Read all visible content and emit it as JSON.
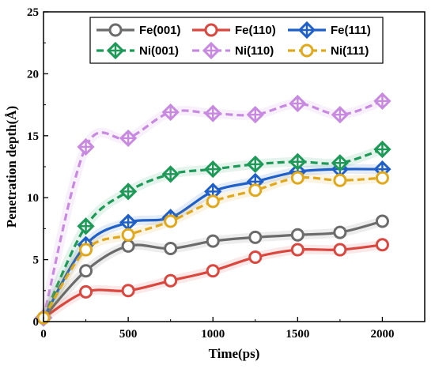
{
  "chart_data": {
    "type": "line",
    "title": "",
    "xlabel": "Time(ps)",
    "ylabel": "Penetration depth(Å)",
    "xlim": [
      0,
      2250
    ],
    "ylim": [
      0,
      25
    ],
    "xticks": [
      0,
      500,
      1000,
      1500,
      2000
    ],
    "yticks": [
      0,
      5,
      10,
      15,
      20,
      25
    ],
    "grid": false,
    "legend_position": "top",
    "series": [
      {
        "name": "Fe(001)",
        "color": "#6b6b6b",
        "marker": "circle",
        "dash": false,
        "x": [
          0,
          250,
          500,
          750,
          1000,
          1250,
          1500,
          1750,
          2000
        ],
        "y": [
          0.3,
          4.1,
          6.1,
          5.9,
          6.5,
          6.8,
          7.0,
          7.2,
          8.1
        ]
      },
      {
        "name": "Fe(110)",
        "color": "#d9473f",
        "marker": "circle",
        "dash": false,
        "x": [
          0,
          250,
          500,
          750,
          1000,
          1250,
          1500,
          1750,
          2000
        ],
        "y": [
          0.3,
          2.4,
          2.5,
          3.3,
          4.1,
          5.2,
          5.8,
          5.8,
          6.2
        ]
      },
      {
        "name": "Fe(111)",
        "color": "#1f5fc8",
        "marker": "diamond",
        "dash": false,
        "x": [
          0,
          250,
          500,
          750,
          1000,
          1250,
          1500,
          1750,
          2000
        ],
        "y": [
          0.3,
          6.2,
          8.0,
          8.4,
          10.5,
          11.3,
          12.1,
          12.3,
          12.3
        ]
      },
      {
        "name": "Ni(001)",
        "color": "#1e9a58",
        "marker": "diamond",
        "dash": true,
        "x": [
          0,
          250,
          500,
          750,
          1000,
          1250,
          1500,
          1750,
          2000
        ],
        "y": [
          0.3,
          7.7,
          10.5,
          11.9,
          12.3,
          12.7,
          12.9,
          12.8,
          13.9
        ]
      },
      {
        "name": "Ni(110)",
        "color": "#c88ae0",
        "marker": "diamond",
        "dash": true,
        "x": [
          0,
          250,
          500,
          750,
          1000,
          1250,
          1500,
          1750,
          2000
        ],
        "y": [
          0.3,
          14.1,
          14.8,
          16.9,
          16.8,
          16.7,
          17.6,
          16.7,
          17.8
        ]
      },
      {
        "name": "Ni(111)",
        "color": "#e0a81c",
        "marker": "circle",
        "dash": true,
        "x": [
          0,
          250,
          500,
          750,
          1000,
          1250,
          1500,
          1750,
          2000
        ],
        "y": [
          0.3,
          5.8,
          7.0,
          8.1,
          9.7,
          10.6,
          11.6,
          11.4,
          11.6
        ]
      }
    ]
  }
}
